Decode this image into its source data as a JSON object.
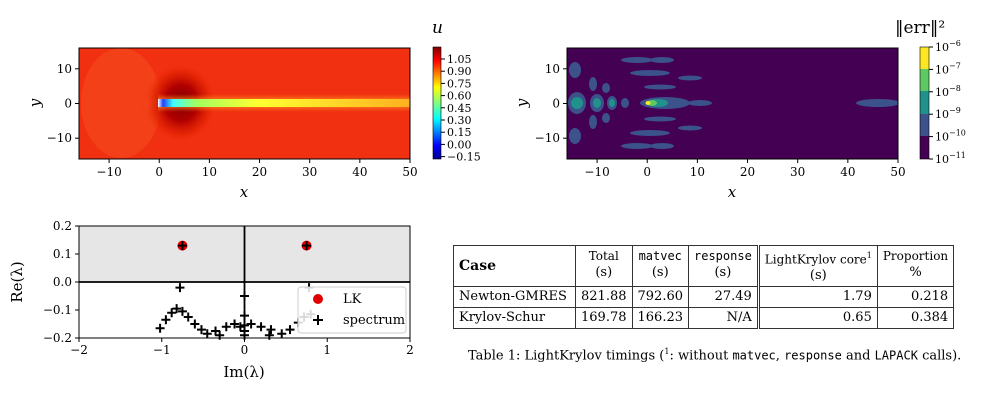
{
  "chart_data": [
    {
      "type": "heatmap",
      "colorbar_title": "u",
      "xlabel": "x",
      "ylabel": "y",
      "xlim": [
        -16,
        50
      ],
      "ylim": [
        -16,
        16
      ],
      "x_ticks": [
        -10,
        0,
        10,
        20,
        30,
        40,
        50
      ],
      "y_ticks": [
        -10,
        0,
        10
      ],
      "colorbar_ticks": [
        "1.05",
        "0.90",
        "0.75",
        "0.60",
        "0.45",
        "0.30",
        "0.15",
        "0.00",
        "−0.15"
      ],
      "colormap": "jet",
      "background_color": "#f03010",
      "wake_color": "#ffd020",
      "low_color": "#8a0000"
    },
    {
      "type": "heatmap",
      "colorbar_title": "‖err‖²",
      "xlabel": "x",
      "ylabel": "y",
      "xlim": [
        -16,
        50
      ],
      "ylim": [
        -16,
        16
      ],
      "x_ticks": [
        -10,
        0,
        10,
        20,
        30,
        40,
        50
      ],
      "y_ticks": [
        -10,
        0,
        10
      ],
      "colorbar_ticks": [
        {
          "base": "10",
          "exp": "−6"
        },
        {
          "base": "10",
          "exp": "−7"
        },
        {
          "base": "10",
          "exp": "−8"
        },
        {
          "base": "10",
          "exp": "−9"
        },
        {
          "base": "10",
          "exp": "−10"
        },
        {
          "base": "10",
          "exp": "−11"
        }
      ],
      "colormap": "viridis",
      "color_scale": "log"
    },
    {
      "type": "scatter",
      "xlabel": "Im(λ)",
      "ylabel": "Re(λ)",
      "xlim": [
        -2,
        2
      ],
      "ylim": [
        -0.2,
        0.2
      ],
      "x_ticks": [
        "−2",
        "−1",
        "0",
        "1",
        "2"
      ],
      "y_ticks": [
        "0.2",
        "0.1",
        "0.0",
        "−0.1",
        "−0.2"
      ],
      "unstable_region_shaded": true,
      "legend_position": "center-right",
      "series": [
        {
          "name": "LK",
          "marker": "circle",
          "color": "#e00000",
          "points": [
            [
              -0.75,
              0.13
            ],
            [
              0.75,
              0.13
            ]
          ]
        },
        {
          "name": "spectrum",
          "marker": "plus",
          "color": "#000000",
          "points": [
            [
              -0.75,
              0.13
            ],
            [
              0.75,
              0.13
            ],
            [
              -0.78,
              -0.02
            ],
            [
              0.78,
              -0.02
            ],
            [
              0.0,
              -0.05
            ],
            [
              0.0,
              -0.12
            ],
            [
              0.0,
              -0.155
            ],
            [
              0.0,
              -0.175
            ],
            [
              0.0,
              -0.19
            ],
            [
              -1.02,
              -0.165
            ],
            [
              -0.95,
              -0.135
            ],
            [
              -0.88,
              -0.11
            ],
            [
              -0.82,
              -0.095
            ],
            [
              -0.75,
              -0.105
            ],
            [
              -0.68,
              -0.125
            ],
            [
              -0.6,
              -0.15
            ],
            [
              -0.52,
              -0.17
            ],
            [
              -0.45,
              -0.185
            ],
            [
              -0.35,
              -0.175
            ],
            [
              -0.22,
              -0.16
            ],
            [
              -0.12,
              -0.15
            ],
            [
              -0.05,
              -0.16
            ],
            [
              0.08,
              -0.15
            ],
            [
              0.2,
              -0.16
            ],
            [
              0.32,
              -0.17
            ],
            [
              0.45,
              -0.185
            ],
            [
              0.55,
              -0.17
            ],
            [
              0.65,
              -0.145
            ],
            [
              0.72,
              -0.125
            ],
            [
              0.8,
              -0.115
            ],
            [
              -0.3,
              -0.19
            ],
            [
              0.3,
              -0.19
            ]
          ]
        }
      ]
    },
    {
      "type": "table",
      "columns": [
        {
          "title": "Case",
          "sub": ""
        },
        {
          "title": "Total",
          "sub": "(s)"
        },
        {
          "title": "matvec",
          "sub": "(s)"
        },
        {
          "title": "response",
          "sub": "(s)"
        },
        {
          "title": "LightKrylov core",
          "sup": "1",
          "sub": "(s)"
        },
        {
          "title": "Proportion",
          "sub": "%"
        }
      ],
      "rows": [
        [
          "Newton-GMRES",
          "821.88",
          "792.60",
          "27.49",
          "1.79",
          "0.218"
        ],
        [
          "Krylov-Schur",
          "169.78",
          "166.23",
          "N/A",
          "0.65",
          "0.384"
        ]
      ],
      "caption": {
        "prefix": "Table 1: LightKrylov timings (",
        "sup": "1",
        "mid": ": without ",
        "code1": "matvec",
        "comma": ", ",
        "code2": "response",
        "and": " and ",
        "code3": "LAPACK",
        "suffix": " calls)."
      }
    }
  ]
}
